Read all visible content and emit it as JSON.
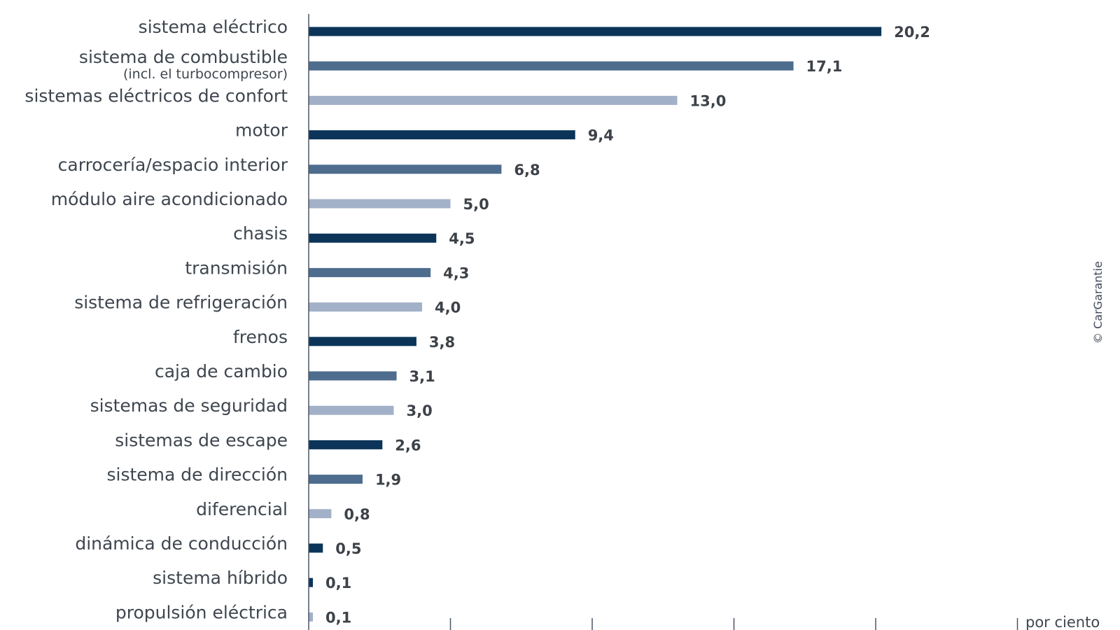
{
  "chart_data": {
    "type": "bar",
    "orientation": "horizontal",
    "xlabel": "por ciento",
    "xlim": [
      0,
      25
    ],
    "x_ticks": [
      5,
      10,
      15,
      20,
      25
    ],
    "credit": "© CarGarantie",
    "colors": [
      "#0b3458",
      "#4e6d8e",
      "#a2b1c8"
    ],
    "categories": [
      {
        "label": "sistema eléctrico",
        "sublabel": "",
        "value": 20.2,
        "display": "20,2",
        "color": "#0b3458"
      },
      {
        "label": "sistema de combustible",
        "sublabel": "(incl. el turbocompresor)",
        "value": 17.1,
        "display": "17,1",
        "color": "#4e6d8e"
      },
      {
        "label": "sistemas eléctricos de confort",
        "sublabel": "",
        "value": 13.0,
        "display": "13,0",
        "color": "#a2b1c8"
      },
      {
        "label": "motor",
        "sublabel": "",
        "value": 9.4,
        "display": "9,4",
        "color": "#0b3458"
      },
      {
        "label": "carrocería/espacio interior",
        "sublabel": "",
        "value": 6.8,
        "display": "6,8",
        "color": "#4e6d8e"
      },
      {
        "label": "módulo aire acondicionado",
        "sublabel": "",
        "value": 5.0,
        "display": "5,0",
        "color": "#a2b1c8"
      },
      {
        "label": "chasis",
        "sublabel": "",
        "value": 4.5,
        "display": "4,5",
        "color": "#0b3458"
      },
      {
        "label": "transmisión",
        "sublabel": "",
        "value": 4.3,
        "display": "4,3",
        "color": "#4e6d8e"
      },
      {
        "label": "sistema de refrigeración",
        "sublabel": "",
        "value": 4.0,
        "display": "4,0",
        "color": "#a2b1c8"
      },
      {
        "label": "frenos",
        "sublabel": "",
        "value": 3.8,
        "display": "3,8",
        "color": "#0b3458"
      },
      {
        "label": "caja de cambio",
        "sublabel": "",
        "value": 3.1,
        "display": "3,1",
        "color": "#4e6d8e"
      },
      {
        "label": "sistemas de seguridad",
        "sublabel": "",
        "value": 3.0,
        "display": "3,0",
        "color": "#a2b1c8"
      },
      {
        "label": "sistemas de escape",
        "sublabel": "",
        "value": 2.6,
        "display": "2,6",
        "color": "#0b3458"
      },
      {
        "label": "sistema de dirección",
        "sublabel": "",
        "value": 1.9,
        "display": "1,9",
        "color": "#4e6d8e"
      },
      {
        "label": "diferencial",
        "sublabel": "",
        "value": 0.8,
        "display": "0,8",
        "color": "#a2b1c8"
      },
      {
        "label": "dinámica de conducción",
        "sublabel": "",
        "value": 0.5,
        "display": "0,5",
        "color": "#0b3458"
      },
      {
        "label": "sistema híbrido",
        "sublabel": "",
        "value": 0.1,
        "display": "0,1",
        "color": "#0b3458"
      },
      {
        "label": "propulsión eléctrica",
        "sublabel": "",
        "value": 0.1,
        "display": "0,1",
        "color": "#a2b1c8"
      }
    ]
  }
}
